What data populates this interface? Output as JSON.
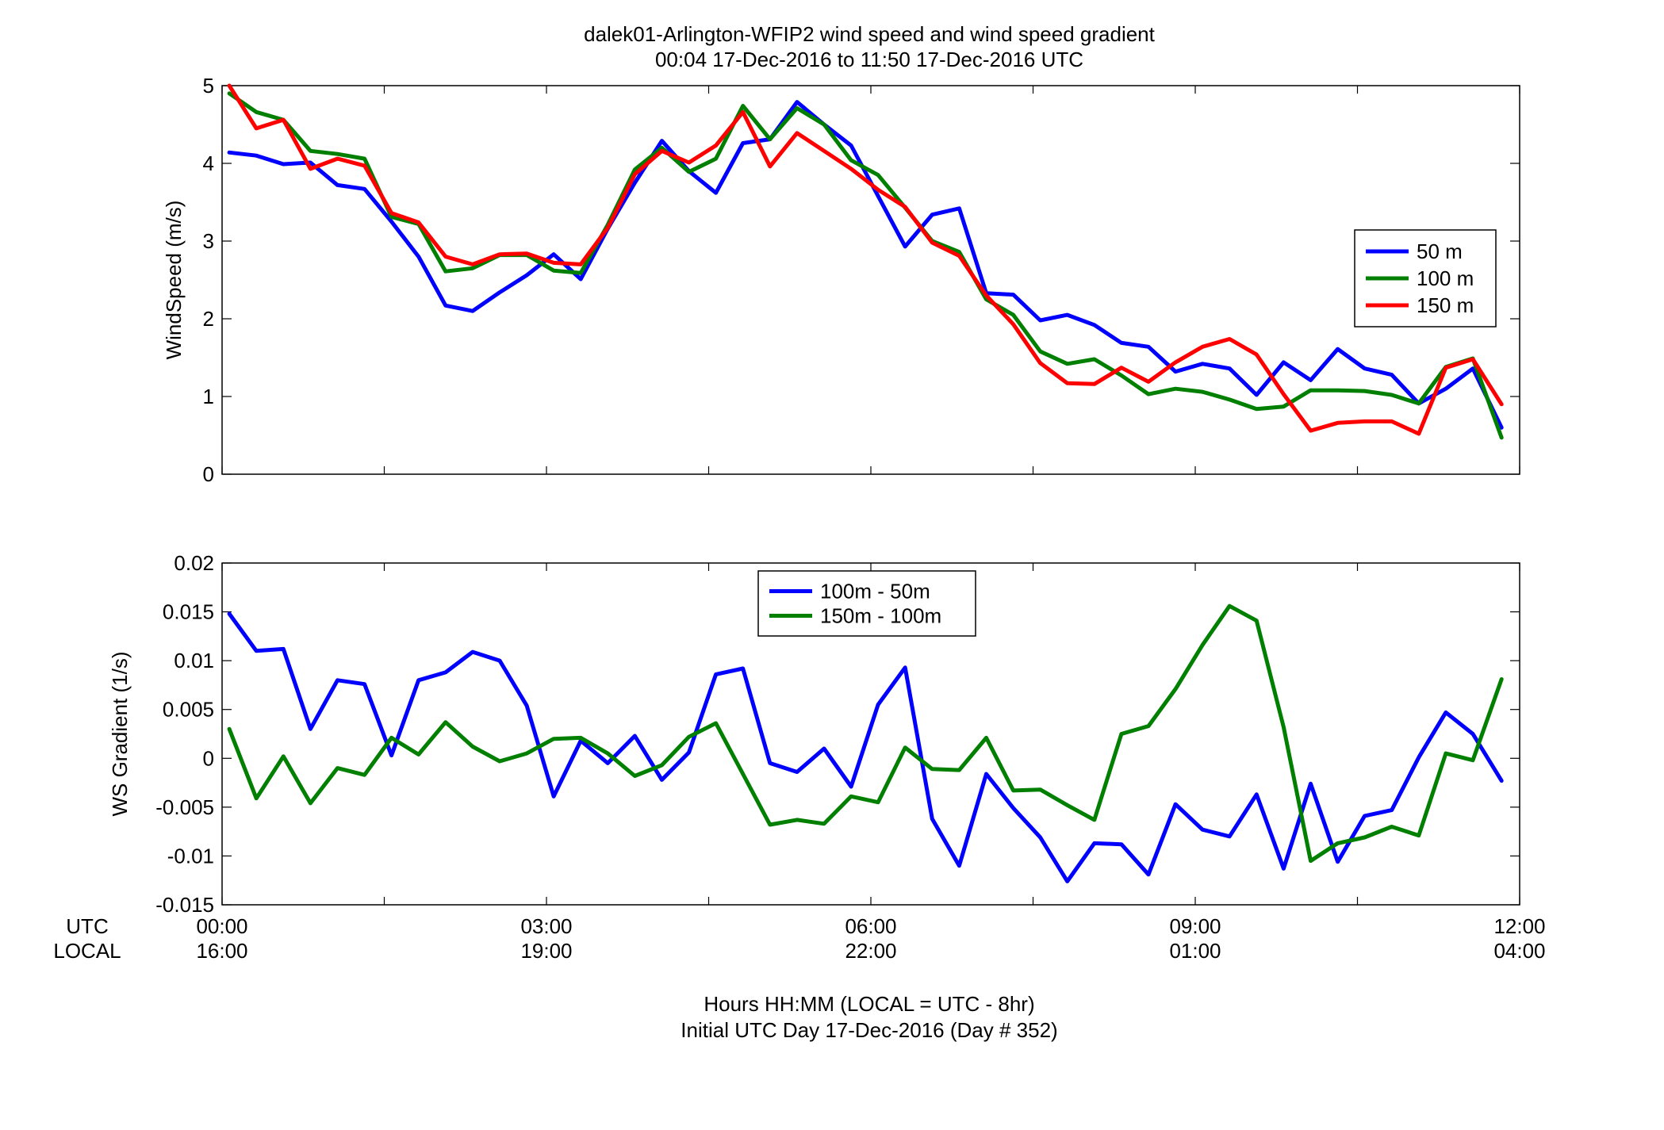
{
  "figure": {
    "title_line1": "dalek01-Arlington-WFIP2  wind speed and wind speed gradient",
    "title_line2": "00:04 17-Dec-2016 to 11:50 17-Dec-2016  UTC",
    "footer_line1": "Hours HH:MM  (LOCAL = UTC - 8hr)",
    "footer_line2": "Initial UTC Day 17-Dec-2016 (Day # 352)",
    "row_label_utc": "UTC",
    "row_label_local": "LOCAL",
    "x_ticks_utc": [
      "00:00",
      "03:00",
      "06:00",
      "09:00",
      "12:00"
    ],
    "x_ticks_local": [
      "16:00",
      "19:00",
      "22:00",
      "01:00",
      "04:00"
    ]
  },
  "chart_data": [
    {
      "type": "line",
      "ylabel": "WindSpeed (m/s)",
      "xlim": [
        0,
        12
      ],
      "ylim": [
        0,
        5
      ],
      "y_ticks": [
        0,
        1,
        2,
        3,
        4,
        5
      ],
      "y_tick_labels": [
        "0",
        "1",
        "2",
        "3",
        "4",
        "5"
      ],
      "legend_location": "right-middle",
      "grid": false,
      "x": [
        0.067,
        0.317,
        0.567,
        0.817,
        1.067,
        1.317,
        1.567,
        1.817,
        2.067,
        2.317,
        2.567,
        2.817,
        3.067,
        3.317,
        3.567,
        3.817,
        4.067,
        4.317,
        4.567,
        4.817,
        5.067,
        5.317,
        5.567,
        5.817,
        6.067,
        6.317,
        6.567,
        6.817,
        7.067,
        7.317,
        7.567,
        7.817,
        8.067,
        8.317,
        8.567,
        8.817,
        9.067,
        9.317,
        9.567,
        9.817,
        10.067,
        10.317,
        10.567,
        10.817,
        11.067,
        11.317,
        11.567,
        11.833
      ],
      "series": [
        {
          "name": "50 m",
          "color": "#0000ff",
          "values": [
            4.14,
            4.1,
            3.99,
            4.01,
            3.72,
            3.67,
            3.25,
            2.8,
            2.17,
            2.1,
            2.34,
            2.56,
            2.83,
            2.51,
            3.16,
            3.75,
            4.29,
            3.9,
            3.62,
            4.26,
            4.31,
            4.79,
            4.5,
            4.23,
            3.58,
            2.93,
            3.34,
            3.42,
            2.33,
            2.31,
            1.98,
            2.05,
            1.92,
            1.69,
            1.64,
            1.32,
            1.42,
            1.36,
            1.02,
            1.44,
            1.21,
            1.61,
            1.36,
            1.28,
            0.91,
            1.1,
            1.36,
            0.6
          ]
        },
        {
          "name": "100 m",
          "color": "#007f00",
          "values": [
            4.9,
            4.66,
            4.56,
            4.16,
            4.12,
            4.06,
            3.31,
            3.22,
            2.61,
            2.65,
            2.82,
            2.82,
            2.62,
            2.59,
            3.21,
            3.92,
            4.2,
            3.89,
            4.06,
            4.74,
            4.31,
            4.71,
            4.5,
            4.04,
            3.85,
            3.43,
            3.0,
            2.86,
            2.25,
            2.05,
            1.58,
            1.42,
            1.48,
            1.27,
            1.03,
            1.1,
            1.06,
            0.96,
            0.84,
            0.87,
            1.08,
            1.08,
            1.07,
            1.02,
            0.91,
            1.38,
            1.49,
            0.47
          ]
        },
        {
          "name": "150 m",
          "color": "#ff0000",
          "values": [
            5.0,
            4.45,
            4.56,
            3.93,
            4.06,
            3.97,
            3.36,
            3.24,
            2.8,
            2.7,
            2.83,
            2.84,
            2.72,
            2.7,
            3.17,
            3.86,
            4.16,
            4.01,
            4.23,
            4.66,
            3.96,
            4.39,
            4.16,
            3.93,
            3.66,
            3.44,
            2.98,
            2.81,
            2.3,
            1.93,
            1.43,
            1.17,
            1.16,
            1.37,
            1.19,
            1.44,
            1.64,
            1.74,
            1.54,
            1.03,
            0.56,
            0.66,
            0.68,
            0.68,
            0.52,
            1.37,
            1.48,
            0.9
          ]
        }
      ]
    },
    {
      "type": "line",
      "ylabel": "WS Gradient (1/s)",
      "xlim": [
        0,
        12
      ],
      "ylim": [
        -0.015,
        0.02
      ],
      "y_ticks": [
        -0.015,
        -0.01,
        -0.005,
        0,
        0.005,
        0.01,
        0.015,
        0.02
      ],
      "y_tick_labels": [
        "-0.015",
        "-0.01",
        "-0.005",
        "0",
        "0.005",
        "0.01",
        "0.015",
        "0.02"
      ],
      "legend_location": "top-center",
      "grid": false,
      "x": [
        0.067,
        0.317,
        0.567,
        0.817,
        1.067,
        1.317,
        1.567,
        1.817,
        2.067,
        2.317,
        2.567,
        2.817,
        3.067,
        3.317,
        3.567,
        3.817,
        4.067,
        4.317,
        4.567,
        4.817,
        5.067,
        5.317,
        5.567,
        5.817,
        6.067,
        6.317,
        6.567,
        6.817,
        7.067,
        7.317,
        7.567,
        7.817,
        8.067,
        8.317,
        8.567,
        8.817,
        9.067,
        9.317,
        9.567,
        9.817,
        10.067,
        10.317,
        10.567,
        10.817,
        11.067,
        11.317,
        11.567,
        11.833
      ],
      "series": [
        {
          "name": "100m - 50m",
          "color": "#0000ff",
          "values": [
            0.0148,
            0.011,
            0.0112,
            0.003,
            0.008,
            0.0076,
            0.0003,
            0.008,
            0.0088,
            0.0109,
            0.01,
            0.0054,
            -0.0039,
            0.0018,
            -0.0005,
            0.0023,
            -0.0022,
            0.0006,
            0.0086,
            0.0092,
            -0.0005,
            -0.0014,
            0.001,
            -0.0029,
            0.0055,
            0.0093,
            -0.0062,
            -0.011,
            -0.0016,
            -0.0051,
            -0.0081,
            -0.0126,
            -0.0087,
            -0.0088,
            -0.0119,
            -0.0047,
            -0.0073,
            -0.008,
            -0.0037,
            -0.0113,
            -0.0026,
            -0.0106,
            -0.0059,
            -0.0053,
            0.0001,
            0.0047,
            0.0025,
            -0.0023
          ]
        },
        {
          "name": "150m - 100m",
          "color": "#007f00",
          "values": [
            0.003,
            -0.0041,
            0.0002,
            -0.0046,
            -0.001,
            -0.0017,
            0.0021,
            0.0004,
            0.0037,
            0.0012,
            -0.0003,
            0.0005,
            0.002,
            0.0021,
            0.0005,
            -0.0018,
            -0.0007,
            0.0022,
            0.0036,
            -0.0016,
            -0.0068,
            -0.0063,
            -0.0067,
            -0.0039,
            -0.0045,
            0.0011,
            -0.0011,
            -0.0012,
            0.0021,
            -0.0033,
            -0.0032,
            -0.0048,
            -0.0063,
            0.0025,
            0.0033,
            0.0071,
            0.0116,
            0.0156,
            0.0141,
            0.0032,
            -0.0105,
            -0.0087,
            -0.0081,
            -0.007,
            -0.0079,
            0.0005,
            -0.0002,
            0.0081
          ]
        }
      ]
    }
  ]
}
